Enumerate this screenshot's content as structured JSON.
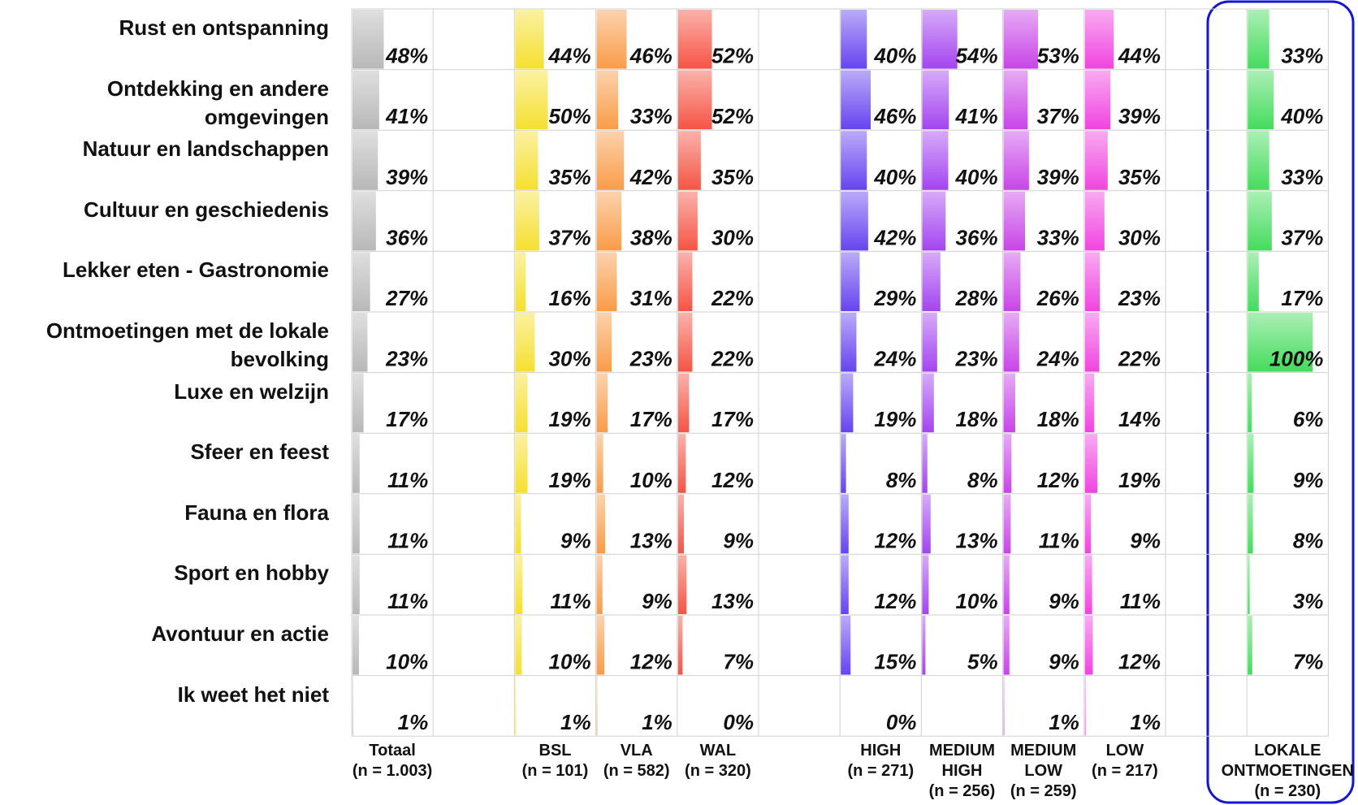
{
  "chart_data": {
    "type": "bar",
    "categories": [
      "Rust en ontspanning",
      "Ontdekking en andere omgevingen",
      "Natuur en landschappen",
      "Cultuur en geschiedenis",
      "Lekker eten - Gastronomie",
      "Ontmoetingen met de lokale bevolking",
      "Luxe en welzijn",
      "Sfeer en feest",
      "Fauna en flora",
      "Sport en hobby",
      "Avontuur en actie",
      "Ik weet het niet"
    ],
    "xlim": [
      0,
      100
    ],
    "series": [
      {
        "name": "Totaal",
        "n_label": "(n = 1.003)",
        "color": "#b8b8b8",
        "values": [
          48,
          41,
          39,
          36,
          27,
          23,
          17,
          11,
          11,
          11,
          10,
          1
        ],
        "value_labels": [
          "48%",
          "41%",
          "39%",
          "36%",
          "27%",
          "23%",
          "17%",
          "11%",
          "11%",
          "11%",
          "10%",
          "1%"
        ]
      },
      {
        "name": "BSL",
        "n_label": "(n = 101)",
        "color": "#f5e030",
        "values": [
          44,
          50,
          35,
          37,
          16,
          30,
          19,
          19,
          9,
          11,
          10,
          1
        ],
        "value_labels": [
          "44%",
          "50%",
          "35%",
          "37%",
          "16%",
          "30%",
          "19%",
          "19%",
          "9%",
          "11%",
          "10%",
          "1%"
        ]
      },
      {
        "name": "VLA",
        "n_label": "(n = 582)",
        "color": "#f99c48",
        "values": [
          46,
          33,
          42,
          38,
          31,
          23,
          17,
          10,
          13,
          9,
          12,
          1
        ],
        "value_labels": [
          "46%",
          "33%",
          "42%",
          "38%",
          "31%",
          "23%",
          "17%",
          "10%",
          "13%",
          "9%",
          "12%",
          "1%"
        ]
      },
      {
        "name": "WAL",
        "n_label": "(n = 320)",
        "color": "#f55444",
        "values": [
          52,
          52,
          35,
          30,
          22,
          22,
          17,
          12,
          9,
          13,
          7,
          0
        ],
        "value_labels": [
          "52%",
          "52%",
          "35%",
          "30%",
          "22%",
          "22%",
          "17%",
          "12%",
          "9%",
          "13%",
          "7%",
          "0%"
        ]
      },
      {
        "name": "HIGH",
        "n_label": "(n = 271)",
        "color": "#6644f0",
        "values": [
          40,
          46,
          40,
          42,
          29,
          24,
          19,
          8,
          12,
          12,
          15,
          0
        ],
        "value_labels": [
          "40%",
          "46%",
          "40%",
          "42%",
          "29%",
          "24%",
          "19%",
          "8%",
          "12%",
          "12%",
          "15%",
          "0%"
        ]
      },
      {
        "name": "MEDIUM HIGH",
        "n_label": "(n = 256)",
        "color": "#a444f0",
        "values": [
          54,
          41,
          40,
          36,
          28,
          23,
          18,
          8,
          13,
          10,
          5,
          null
        ],
        "value_labels": [
          "54%",
          "41%",
          "40%",
          "36%",
          "28%",
          "23%",
          "18%",
          "8%",
          "13%",
          "10%",
          "5%",
          null
        ]
      },
      {
        "name": "MEDIUM LOW",
        "n_label": "(n = 259)",
        "color": "#c844e8",
        "values": [
          53,
          37,
          39,
          33,
          26,
          24,
          18,
          12,
          11,
          9,
          9,
          1
        ],
        "value_labels": [
          "53%",
          "37%",
          "39%",
          "33%",
          "26%",
          "24%",
          "18%",
          "12%",
          "11%",
          "9%",
          "9%",
          "1%"
        ]
      },
      {
        "name": "LOW",
        "n_label": "(n = 217)",
        "color": "#f044e0",
        "values": [
          44,
          39,
          35,
          30,
          23,
          22,
          14,
          19,
          9,
          11,
          12,
          1
        ],
        "value_labels": [
          "44%",
          "39%",
          "35%",
          "30%",
          "23%",
          "22%",
          "14%",
          "19%",
          "9%",
          "11%",
          "12%",
          "1%"
        ]
      },
      {
        "name": "LOKALE ONTMOETINGEN",
        "n_label": "(n = 230)",
        "color": "#44dc5c",
        "values": [
          33,
          40,
          33,
          37,
          17,
          100,
          6,
          9,
          8,
          3,
          7,
          null
        ],
        "value_labels": [
          "33%",
          "40%",
          "33%",
          "37%",
          "17%",
          "100%",
          "6%",
          "9%",
          "8%",
          "3%",
          "7%",
          null
        ]
      }
    ]
  }
}
